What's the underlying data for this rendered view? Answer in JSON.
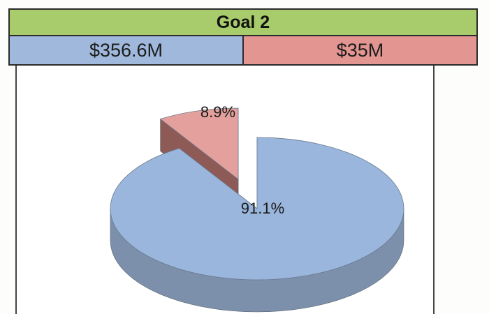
{
  "header": {
    "title": "Goal 2"
  },
  "amounts": [
    {
      "label": "$356.6M"
    },
    {
      "label": "$35M"
    }
  ],
  "colors": {
    "header_bg": "#a8cc6c",
    "blue_cell": "#9fb8dc",
    "red_cell": "#e39591",
    "blue_top": "#9ab6dc",
    "blue_side": "#7d90ab",
    "red_top": "#e3a09c",
    "red_side": "#8e5a56"
  },
  "chart_data": {
    "type": "pie",
    "title": "",
    "slices": [
      {
        "value": 91.1,
        "label": "91.1%",
        "color": "#9ab6dc"
      },
      {
        "value": 8.9,
        "label": "8.9%",
        "color": "#e3a09c",
        "exploded": true
      }
    ]
  }
}
